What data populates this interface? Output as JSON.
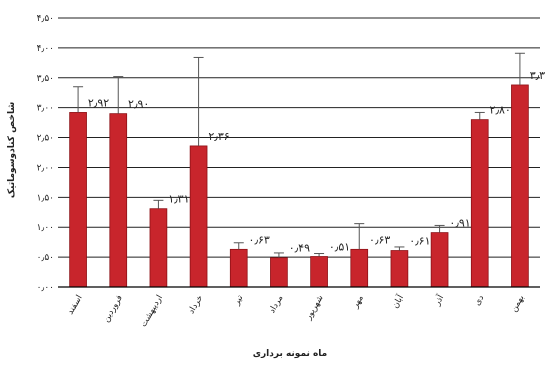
{
  "chart_data": {
    "type": "bar",
    "title": "",
    "xlabel": "ماه نمونه برداری",
    "ylabel": "شاخص کنادوسوماتیک",
    "ylim": [
      0,
      4.5
    ],
    "yticks": [
      0,
      0.5,
      1.0,
      1.5,
      2.0,
      2.5,
      3.0,
      3.5,
      4.0,
      4.5
    ],
    "ytick_labels": [
      "۰٫۰۰",
      "۰٫۵۰",
      "۱٫۰۰",
      "۱٫۵۰",
      "۲٫۰۰",
      "۲٫۵۰",
      "۳٫۰۰",
      "۳٫۵۰",
      "۴٫۰۰",
      "۴٫۵۰"
    ],
    "grid": true,
    "categories": [
      "اسفند",
      "فروردین",
      "اردیبهشت",
      "خرداد",
      "تیر",
      "مرداد",
      "شهریور",
      "مهر",
      "آبان",
      "آذر",
      "دی",
      "بهمن"
    ],
    "values": [
      2.92,
      2.9,
      1.31,
      2.36,
      0.63,
      0.49,
      0.51,
      0.63,
      0.61,
      0.91,
      2.8,
      3.38
    ],
    "errors": [
      0.43,
      0.62,
      0.14,
      1.48,
      0.11,
      0.08,
      0.05,
      0.43,
      0.06,
      0.12,
      0.12,
      0.53
    ],
    "data_labels": [
      "۲٫۹۲",
      "۲٫۹۰",
      "۱٫۳۱",
      "۲٫۳۶",
      "۰٫۶۳",
      "۰٫۴۹",
      "۰٫۵۱",
      "۰٫۶۳",
      "۰٫۶۱",
      "۰٫۹۱",
      "۲٫۸۰",
      "۳٫۳۸"
    ],
    "bar_color": "#c8252c",
    "error_color": "#555555",
    "grid_color": "#222222"
  }
}
